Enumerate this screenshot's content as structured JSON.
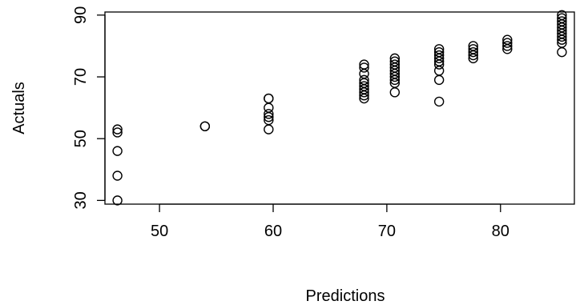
{
  "chart_data": {
    "type": "scatter",
    "title": "",
    "xlabel": "Predictions",
    "ylabel": "Actuals",
    "xlim": [
      45.2,
      86.5
    ],
    "ylim": [
      28.8,
      91.0
    ],
    "xticks": [
      50,
      60,
      70,
      80
    ],
    "yticks": [
      30,
      50,
      70,
      90
    ],
    "grid": false,
    "legend": "none",
    "marker": "open-circle",
    "color": "#000000",
    "points": [
      {
        "x": 46.3,
        "y": 53
      },
      {
        "x": 46.3,
        "y": 52
      },
      {
        "x": 46.3,
        "y": 46
      },
      {
        "x": 46.3,
        "y": 38
      },
      {
        "x": 46.3,
        "y": 30
      },
      {
        "x": 54.0,
        "y": 54
      },
      {
        "x": 54.0,
        "y": 54
      },
      {
        "x": 59.6,
        "y": 63
      },
      {
        "x": 59.6,
        "y": 63
      },
      {
        "x": 59.6,
        "y": 60
      },
      {
        "x": 59.6,
        "y": 58
      },
      {
        "x": 59.6,
        "y": 57
      },
      {
        "x": 59.6,
        "y": 56
      },
      {
        "x": 59.6,
        "y": 53
      },
      {
        "x": 68.0,
        "y": 74
      },
      {
        "x": 68.0,
        "y": 73
      },
      {
        "x": 68.0,
        "y": 71
      },
      {
        "x": 68.0,
        "y": 69
      },
      {
        "x": 68.0,
        "y": 68
      },
      {
        "x": 68.0,
        "y": 67
      },
      {
        "x": 68.0,
        "y": 66
      },
      {
        "x": 68.0,
        "y": 65
      },
      {
        "x": 68.0,
        "y": 64
      },
      {
        "x": 68.0,
        "y": 63
      },
      {
        "x": 70.7,
        "y": 76
      },
      {
        "x": 70.7,
        "y": 75
      },
      {
        "x": 70.7,
        "y": 74
      },
      {
        "x": 70.7,
        "y": 73
      },
      {
        "x": 70.7,
        "y": 72
      },
      {
        "x": 70.7,
        "y": 71
      },
      {
        "x": 70.7,
        "y": 70
      },
      {
        "x": 70.7,
        "y": 69
      },
      {
        "x": 70.7,
        "y": 68
      },
      {
        "x": 70.7,
        "y": 65
      },
      {
        "x": 74.6,
        "y": 79
      },
      {
        "x": 74.6,
        "y": 78
      },
      {
        "x": 74.6,
        "y": 77
      },
      {
        "x": 74.6,
        "y": 76
      },
      {
        "x": 74.6,
        "y": 75
      },
      {
        "x": 74.6,
        "y": 74
      },
      {
        "x": 74.6,
        "y": 72
      },
      {
        "x": 74.6,
        "y": 69
      },
      {
        "x": 74.6,
        "y": 62
      },
      {
        "x": 77.6,
        "y": 80
      },
      {
        "x": 77.6,
        "y": 79
      },
      {
        "x": 77.6,
        "y": 78
      },
      {
        "x": 77.6,
        "y": 77
      },
      {
        "x": 77.6,
        "y": 76
      },
      {
        "x": 80.6,
        "y": 82
      },
      {
        "x": 80.6,
        "y": 81
      },
      {
        "x": 80.6,
        "y": 80
      },
      {
        "x": 80.6,
        "y": 79
      },
      {
        "x": 85.4,
        "y": 90
      },
      {
        "x": 85.4,
        "y": 89
      },
      {
        "x": 85.4,
        "y": 88
      },
      {
        "x": 85.4,
        "y": 87
      },
      {
        "x": 85.4,
        "y": 86
      },
      {
        "x": 85.4,
        "y": 85
      },
      {
        "x": 85.4,
        "y": 84
      },
      {
        "x": 85.4,
        "y": 83
      },
      {
        "x": 85.4,
        "y": 82
      },
      {
        "x": 85.4,
        "y": 81
      },
      {
        "x": 85.4,
        "y": 78
      }
    ]
  }
}
